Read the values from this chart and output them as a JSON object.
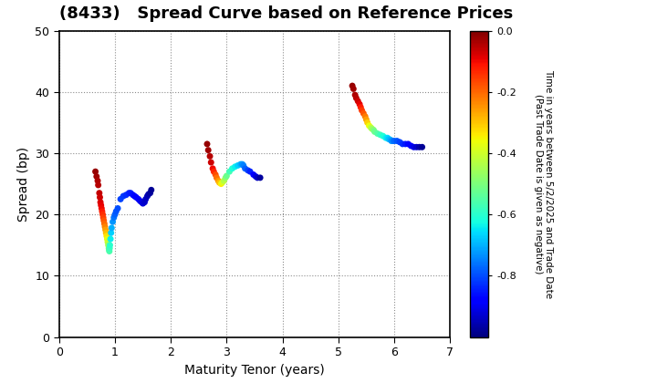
{
  "title": "(8433)   Spread Curve based on Reference Prices",
  "xlabel": "Maturity Tenor (years)",
  "ylabel": "Spread (bp)",
  "colorbar_label_line1": "Time in years between 5/2/2025 and Trade Date",
  "colorbar_label_line2": "(Past Trade Date is given as negative)",
  "xlim": [
    0,
    7
  ],
  "ylim": [
    0,
    50
  ],
  "xticks": [
    0,
    1,
    2,
    3,
    4,
    5,
    6,
    7
  ],
  "yticks": [
    0,
    10,
    20,
    30,
    40,
    50
  ],
  "clim_min": -1.0,
  "clim_max": 0.0,
  "colorbar_ticks": [
    0.0,
    -0.2,
    -0.4,
    -0.6,
    -0.8
  ],
  "colormap": "jet",
  "point_size": 25,
  "clusters": [
    {
      "points": [
        [
          0.65,
          27.0,
          -0.02
        ],
        [
          0.67,
          26.2,
          -0.03
        ],
        [
          0.69,
          25.5,
          -0.04
        ],
        [
          0.7,
          24.8,
          -0.05
        ],
        [
          0.72,
          23.5,
          -0.06
        ],
        [
          0.73,
          22.8,
          -0.07
        ],
        [
          0.74,
          22.0,
          -0.08
        ],
        [
          0.75,
          21.5,
          -0.09
        ],
        [
          0.76,
          21.0,
          -0.1
        ],
        [
          0.77,
          20.5,
          -0.12
        ],
        [
          0.78,
          20.0,
          -0.14
        ],
        [
          0.79,
          19.5,
          -0.16
        ],
        [
          0.8,
          19.0,
          -0.18
        ],
        [
          0.81,
          18.5,
          -0.2
        ],
        [
          0.82,
          18.0,
          -0.23
        ],
        [
          0.83,
          17.5,
          -0.26
        ],
        [
          0.84,
          17.0,
          -0.29
        ],
        [
          0.85,
          16.5,
          -0.33
        ],
        [
          0.86,
          16.0,
          -0.37
        ],
        [
          0.87,
          15.5,
          -0.41
        ],
        [
          0.88,
          15.0,
          -0.46
        ],
        [
          0.89,
          14.5,
          -0.51
        ],
        [
          0.895,
          14.2,
          -0.54
        ],
        [
          0.9,
          14.0,
          -0.56
        ],
        [
          0.905,
          14.5,
          -0.58
        ],
        [
          0.91,
          15.0,
          -0.6
        ],
        [
          0.92,
          16.0,
          -0.64
        ],
        [
          0.93,
          17.0,
          -0.67
        ],
        [
          0.94,
          17.8,
          -0.7
        ],
        [
          0.96,
          18.8,
          -0.73
        ],
        [
          0.98,
          19.5,
          -0.76
        ],
        [
          1.0,
          20.0,
          -0.78
        ],
        [
          1.02,
          20.5,
          -0.79
        ],
        [
          1.05,
          21.0,
          -0.8
        ],
        [
          1.1,
          22.5,
          -0.81
        ],
        [
          1.15,
          23.0,
          -0.82
        ],
        [
          1.2,
          23.2,
          -0.83
        ],
        [
          1.25,
          23.5,
          -0.84
        ],
        [
          1.28,
          23.5,
          -0.85
        ],
        [
          1.32,
          23.2,
          -0.86
        ],
        [
          1.35,
          23.0,
          -0.87
        ],
        [
          1.38,
          22.8,
          -0.88
        ],
        [
          1.42,
          22.5,
          -0.89
        ],
        [
          1.45,
          22.2,
          -0.9
        ],
        [
          1.48,
          22.0,
          -0.91
        ],
        [
          1.5,
          21.8,
          -0.92
        ],
        [
          1.53,
          22.0,
          -0.93
        ],
        [
          1.55,
          22.5,
          -0.94
        ],
        [
          1.58,
          23.0,
          -0.95
        ],
        [
          1.6,
          23.3,
          -0.96
        ],
        [
          1.63,
          23.5,
          -0.97
        ],
        [
          1.65,
          24.0,
          -0.98
        ]
      ]
    },
    {
      "points": [
        [
          2.65,
          31.5,
          -0.02
        ],
        [
          2.67,
          30.5,
          -0.03
        ],
        [
          2.7,
          29.5,
          -0.05
        ],
        [
          2.72,
          28.5,
          -0.07
        ],
        [
          2.75,
          27.5,
          -0.1
        ],
        [
          2.77,
          27.0,
          -0.13
        ],
        [
          2.8,
          26.5,
          -0.17
        ],
        [
          2.82,
          26.0,
          -0.21
        ],
        [
          2.85,
          25.5,
          -0.25
        ],
        [
          2.87,
          25.2,
          -0.29
        ],
        [
          2.9,
          25.0,
          -0.34
        ],
        [
          2.92,
          25.2,
          -0.38
        ],
        [
          2.95,
          25.5,
          -0.43
        ],
        [
          2.98,
          26.0,
          -0.48
        ],
        [
          3.0,
          26.3,
          -0.52
        ],
        [
          3.05,
          27.0,
          -0.57
        ],
        [
          3.1,
          27.5,
          -0.61
        ],
        [
          3.15,
          27.8,
          -0.64
        ],
        [
          3.2,
          28.0,
          -0.67
        ],
        [
          3.25,
          28.2,
          -0.7
        ],
        [
          3.28,
          28.2,
          -0.73
        ],
        [
          3.3,
          28.0,
          -0.75
        ],
        [
          3.33,
          27.5,
          -0.78
        ],
        [
          3.38,
          27.2,
          -0.81
        ],
        [
          3.42,
          27.0,
          -0.84
        ],
        [
          3.48,
          26.5,
          -0.88
        ],
        [
          3.52,
          26.2,
          -0.91
        ],
        [
          3.55,
          26.0,
          -0.94
        ],
        [
          3.6,
          26.0,
          -0.97
        ]
      ]
    },
    {
      "points": [
        [
          5.25,
          41.0,
          -0.02
        ],
        [
          5.27,
          40.5,
          -0.03
        ],
        [
          5.3,
          39.5,
          -0.04
        ],
        [
          5.32,
          39.0,
          -0.05
        ],
        [
          5.35,
          38.5,
          -0.07
        ],
        [
          5.38,
          38.0,
          -0.09
        ],
        [
          5.4,
          37.5,
          -0.12
        ],
        [
          5.42,
          37.0,
          -0.15
        ],
        [
          5.45,
          36.5,
          -0.18
        ],
        [
          5.48,
          36.0,
          -0.22
        ],
        [
          5.5,
          35.5,
          -0.26
        ],
        [
          5.52,
          35.0,
          -0.31
        ],
        [
          5.55,
          34.5,
          -0.36
        ],
        [
          5.58,
          34.2,
          -0.41
        ],
        [
          5.6,
          34.0,
          -0.45
        ],
        [
          5.63,
          33.8,
          -0.49
        ],
        [
          5.65,
          33.5,
          -0.52
        ],
        [
          5.7,
          33.2,
          -0.55
        ],
        [
          5.75,
          33.0,
          -0.58
        ],
        [
          5.8,
          32.8,
          -0.61
        ],
        [
          5.85,
          32.5,
          -0.64
        ],
        [
          5.88,
          32.5,
          -0.66
        ],
        [
          5.9,
          32.3,
          -0.68
        ],
        [
          5.93,
          32.2,
          -0.7
        ],
        [
          5.95,
          32.0,
          -0.73
        ],
        [
          5.98,
          32.0,
          -0.75
        ],
        [
          6.0,
          32.0,
          -0.77
        ],
        [
          6.05,
          32.0,
          -0.79
        ],
        [
          6.1,
          31.8,
          -0.81
        ],
        [
          6.15,
          31.5,
          -0.83
        ],
        [
          6.2,
          31.5,
          -0.85
        ],
        [
          6.25,
          31.5,
          -0.87
        ],
        [
          6.3,
          31.2,
          -0.89
        ],
        [
          6.35,
          31.0,
          -0.91
        ],
        [
          6.4,
          31.0,
          -0.93
        ],
        [
          6.45,
          31.0,
          -0.96
        ],
        [
          6.5,
          31.0,
          -0.98
        ]
      ]
    }
  ]
}
